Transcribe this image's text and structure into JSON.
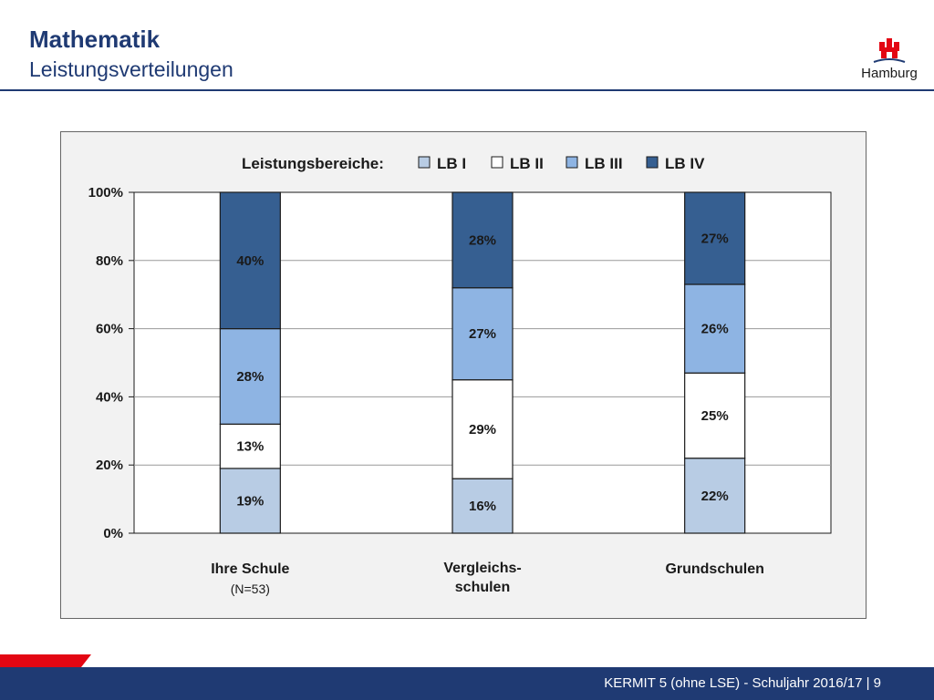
{
  "header": {
    "title": "Mathematik",
    "subtitle": "Leistungsverteilungen",
    "logo_text": "Hamburg"
  },
  "footer": {
    "text": "KERMIT 5 (ohne LSE) - Schuljahr 2016/17 | 9"
  },
  "colors": {
    "LB I": "#b8cce4",
    "LB II": "#ffffff",
    "LB III": "#8eb4e3",
    "LB IV": "#365f91",
    "title": "#1f3a73",
    "footer": "#1f3a73",
    "accent": "#e30613"
  },
  "chart_data": {
    "type": "bar",
    "stacked": true,
    "legend_title": "Leistungsbereiche:",
    "legend_position": "top",
    "categories": [
      {
        "label_lines": [
          "Ihre Schule"
        ],
        "sub": "(N=53)"
      },
      {
        "label_lines": [
          "Vergleichs-",
          "schulen"
        ],
        "sub": ""
      },
      {
        "label_lines": [
          "Grundschulen"
        ],
        "sub": ""
      }
    ],
    "series": [
      {
        "name": "LB I",
        "values": [
          19,
          16,
          22
        ],
        "labels": [
          "19%",
          "16%",
          "22%"
        ]
      },
      {
        "name": "LB II",
        "values": [
          13,
          29,
          25
        ],
        "labels": [
          "13%",
          "29%",
          "25%"
        ]
      },
      {
        "name": "LB III",
        "values": [
          28,
          27,
          26
        ],
        "labels": [
          "28%",
          "27%",
          "26%"
        ]
      },
      {
        "name": "LB IV",
        "values": [
          40,
          28,
          27
        ],
        "labels": [
          "40%",
          "28%",
          "27%"
        ]
      }
    ],
    "yticks": [
      "0%",
      "20%",
      "40%",
      "60%",
      "80%",
      "100%"
    ],
    "ylim": [
      0,
      100
    ],
    "grid": true
  }
}
